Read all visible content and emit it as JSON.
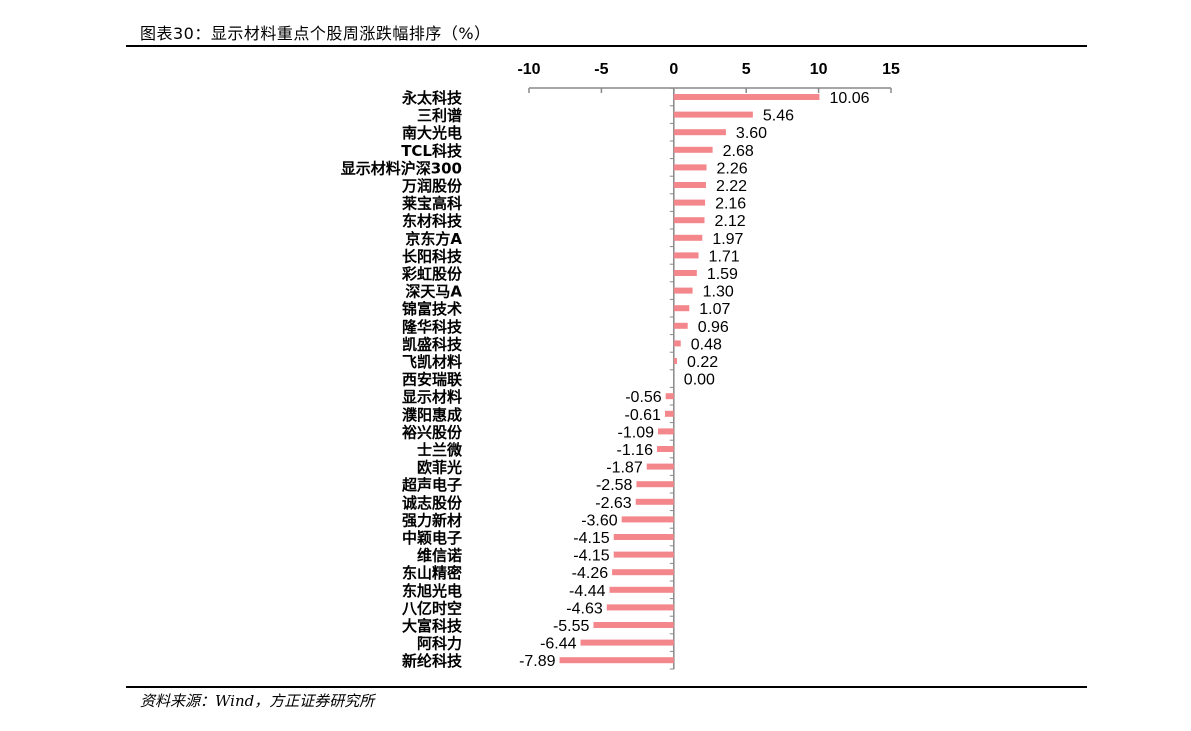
{
  "title": "图表30：显示材料重点个股周涨跌幅排序（%）",
  "source": "资料来源：Wind，方正证券研究所",
  "colors": {
    "bar": "#F4878B",
    "axis": "#888888"
  },
  "chart_data": {
    "type": "bar",
    "orientation": "horizontal",
    "title": "图表30：显示材料重点个股周涨跌幅排序（%）",
    "xlim": [
      -10,
      15
    ],
    "ticks": [
      "-10",
      "-5",
      "0",
      "5",
      "10",
      "15"
    ],
    "tick_values": [
      -10,
      -5,
      0,
      5,
      10,
      15
    ],
    "axis_position": "top",
    "grid": false,
    "categories": [
      "永太科技",
      "三利谱",
      "南大光电",
      "TCL科技",
      "显示材料沪深300",
      "万润股份",
      "莱宝高科",
      "东材科技",
      "京东方A",
      "长阳科技",
      "彩虹股份",
      "深天马A",
      "锦富技术",
      "隆华科技",
      "凯盛科技",
      "飞凯材料",
      "西安瑞联",
      "显示材料",
      "濮阳惠成",
      "裕兴股份",
      "士兰微",
      "欧菲光",
      "超声电子",
      "诚志股份",
      "强力新材",
      "中颖电子",
      "维信诺",
      "东山精密",
      "东旭光电",
      "八亿时空",
      "大富科技",
      "阿科力",
      "新纶科技"
    ],
    "values": [
      10.06,
      5.46,
      3.6,
      2.68,
      2.26,
      2.22,
      2.16,
      2.12,
      1.97,
      1.71,
      1.59,
      1.3,
      1.07,
      0.96,
      0.48,
      0.22,
      0.0,
      -0.56,
      -0.61,
      -1.09,
      -1.16,
      -1.87,
      -2.58,
      -2.63,
      -3.6,
      -4.15,
      -4.15,
      -4.26,
      -4.44,
      -4.63,
      -5.55,
      -6.44,
      -7.89
    ],
    "value_labels": [
      "10.06",
      "5.46",
      "3.60",
      "2.68",
      "2.26",
      "2.22",
      "2.16",
      "2.12",
      "1.97",
      "1.71",
      "1.59",
      "1.30",
      "1.07",
      "0.96",
      "0.48",
      "0.22",
      "0.00",
      "-0.56",
      "-0.61",
      "-1.09",
      "-1.16",
      "-1.87",
      "-2.58",
      "-2.63",
      "-3.60",
      "-4.15",
      "-4.15",
      "-4.26",
      "-4.44",
      "-4.63",
      "-5.55",
      "-6.44",
      "-7.89"
    ]
  }
}
